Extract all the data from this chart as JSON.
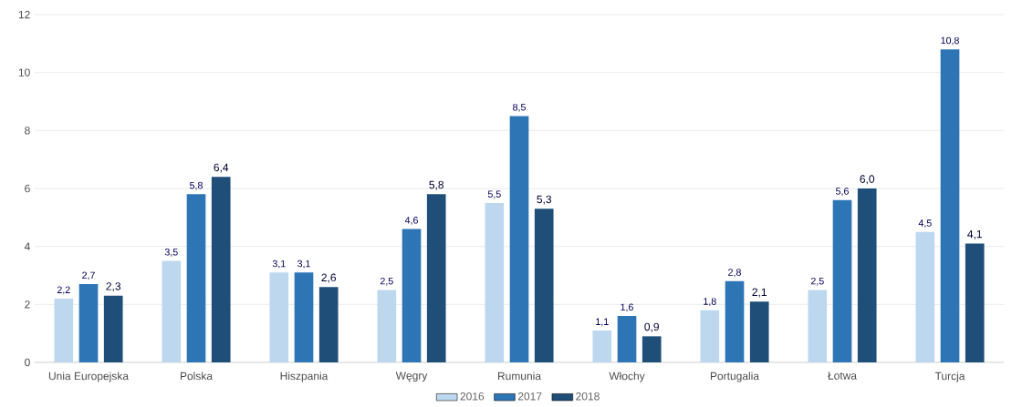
{
  "chart_data": {
    "type": "bar",
    "categories": [
      "Unia Europejska",
      "Polska",
      "Hiszpania",
      "Węgry",
      "Rumunia",
      "Włochy",
      "Portugalia",
      "Łotwa",
      "Turcja"
    ],
    "series": [
      {
        "name": "2016",
        "color": "#bdd7ee",
        "values": [
          2.2,
          3.5,
          3.1,
          2.5,
          5.5,
          1.1,
          1.8,
          2.5,
          4.5
        ],
        "value_labels": [
          "2,2",
          "3,5",
          "3,1",
          "2,5",
          "5,5",
          "1,1",
          "1,8",
          "2,5",
          "4,5"
        ]
      },
      {
        "name": "2017",
        "color": "#2e75b6",
        "values": [
          2.7,
          5.8,
          3.1,
          4.6,
          8.5,
          1.6,
          2.8,
          5.6,
          10.8
        ],
        "value_labels": [
          "2,7",
          "5,8",
          "3,1",
          "4,6",
          "8,5",
          "1,6",
          "2,8",
          "5,6",
          "10,8"
        ]
      },
      {
        "name": "2018",
        "color": "#1f4e79",
        "values": [
          2.3,
          6.4,
          2.6,
          5.8,
          5.3,
          0.9,
          2.1,
          6.0,
          4.1
        ],
        "value_labels": [
          "2,3",
          "6,4",
          "2,6",
          "5,8",
          "5,3",
          "0,9",
          "2,1",
          "6,0",
          "4,1"
        ]
      }
    ],
    "ylim": [
      0,
      12
    ],
    "yticks": [
      0,
      2,
      4,
      6,
      8,
      10,
      12
    ],
    "grid": "y",
    "legend": "bottom"
  }
}
